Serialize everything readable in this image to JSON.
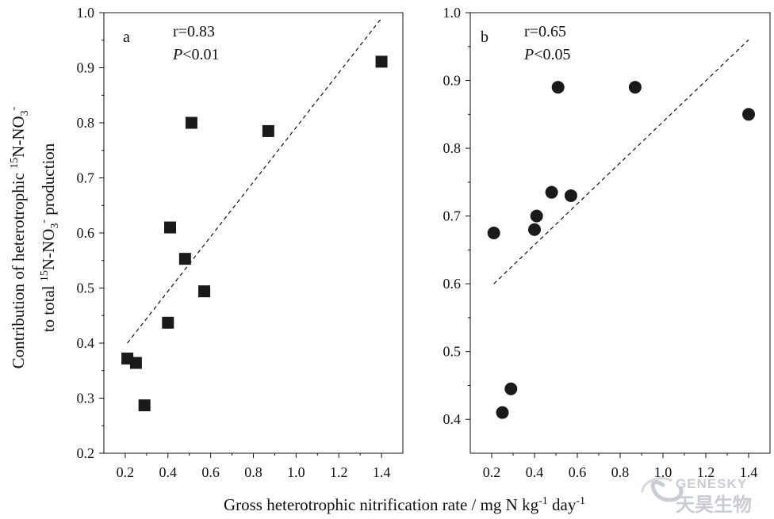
{
  "chart_data": [
    {
      "type": "scatter",
      "panel_label": "a",
      "marker": "square",
      "stats": {
        "r": "r=0.83",
        "p_prefix": "P",
        "p_suffix": "<0.01"
      },
      "xlim": [
        0.1,
        1.5
      ],
      "ylim": [
        0.2,
        1.0
      ],
      "x_ticks": [
        0.2,
        0.4,
        0.6,
        0.8,
        1.0,
        1.2,
        1.4
      ],
      "x_tick_labels": [
        "0.2",
        "0.4",
        "0.6",
        "0.8",
        "1.0",
        "1.2",
        "1.4"
      ],
      "y_ticks": [
        0.2,
        0.3,
        0.4,
        0.5,
        0.6,
        0.7,
        0.8,
        0.9,
        1.0
      ],
      "y_tick_labels": [
        "0.2",
        "0.3",
        "0.4",
        "0.5",
        "0.6",
        "0.7",
        "0.8",
        "0.9",
        "1.0"
      ],
      "points": [
        {
          "x": 0.21,
          "y": 0.372
        },
        {
          "x": 0.25,
          "y": 0.364
        },
        {
          "x": 0.29,
          "y": 0.287
        },
        {
          "x": 0.4,
          "y": 0.437
        },
        {
          "x": 0.41,
          "y": 0.61
        },
        {
          "x": 0.48,
          "y": 0.553
        },
        {
          "x": 0.51,
          "y": 0.8
        },
        {
          "x": 0.57,
          "y": 0.494
        },
        {
          "x": 0.87,
          "y": 0.785
        },
        {
          "x": 1.4,
          "y": 0.911
        }
      ],
      "fit_line": {
        "x": [
          0.21,
          1.4
        ],
        "y": [
          0.4,
          0.99
        ],
        "style": "dashed"
      }
    },
    {
      "type": "scatter",
      "panel_label": "b",
      "marker": "circle",
      "stats": {
        "r": "r=0.65",
        "p_prefix": "P",
        "p_suffix": "<0.05"
      },
      "xlim": [
        0.1,
        1.5
      ],
      "ylim": [
        0.35,
        1.0
      ],
      "x_ticks": [
        0.2,
        0.4,
        0.6,
        0.8,
        1.0,
        1.2,
        1.4
      ],
      "x_tick_labels": [
        "0.2",
        "0.4",
        "0.6",
        "0.8",
        "1.0",
        "1.2",
        "1.4"
      ],
      "y_ticks": [
        0.4,
        0.5,
        0.6,
        0.7,
        0.8,
        0.9,
        1.0
      ],
      "y_tick_labels": [
        "0.4",
        "0.5",
        "0.6",
        "0.7",
        "0.8",
        "0.9",
        "1.0"
      ],
      "points": [
        {
          "x": 0.21,
          "y": 0.675
        },
        {
          "x": 0.25,
          "y": 0.41
        },
        {
          "x": 0.29,
          "y": 0.445
        },
        {
          "x": 0.4,
          "y": 0.68
        },
        {
          "x": 0.41,
          "y": 0.7
        },
        {
          "x": 0.48,
          "y": 0.735
        },
        {
          "x": 0.51,
          "y": 0.89
        },
        {
          "x": 0.57,
          "y": 0.73
        },
        {
          "x": 0.87,
          "y": 0.89
        },
        {
          "x": 1.4,
          "y": 0.85
        }
      ],
      "fit_line": {
        "x": [
          0.21,
          1.4
        ],
        "y": [
          0.6,
          0.96
        ],
        "style": "dashed"
      }
    }
  ],
  "y_axis_title": {
    "line1": {
      "pre": "Contribution of heterotrophic ",
      "sup1": "15",
      "mid": "N-NO",
      "sub": "3",
      "sup2": "-"
    },
    "line2": {
      "pre": "to total ",
      "sup1": "15",
      "mid": "N-NO",
      "sub": "3",
      "sup2": "-",
      "post": " production"
    }
  },
  "x_axis_title": {
    "pre": "Gross heterotrophic nitrification rate / mg N kg",
    "sup1": "-1",
    "mid": " day",
    "sup2": "-1"
  },
  "watermark": {
    "brand_en": "GENESKY",
    "brand_cn": "天昊生物"
  },
  "colors": {
    "marker": "#1a1a1a",
    "axis": "#111111",
    "watermark": "#c9ccd2"
  }
}
